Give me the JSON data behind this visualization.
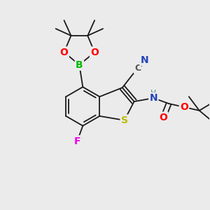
{
  "bg_color": "#ebebeb",
  "bond_color": "#1a1a1a",
  "bond_width": 1.3,
  "figsize": [
    3.0,
    3.0
  ],
  "dpi": 100,
  "colors": {
    "O": "#ff0000",
    "B": "#00bb00",
    "N": "#2244bb",
    "S": "#bbbb00",
    "F": "#ee00ee",
    "C_cn": "#555555",
    "H": "#558888",
    "black": "#1a1a1a"
  }
}
